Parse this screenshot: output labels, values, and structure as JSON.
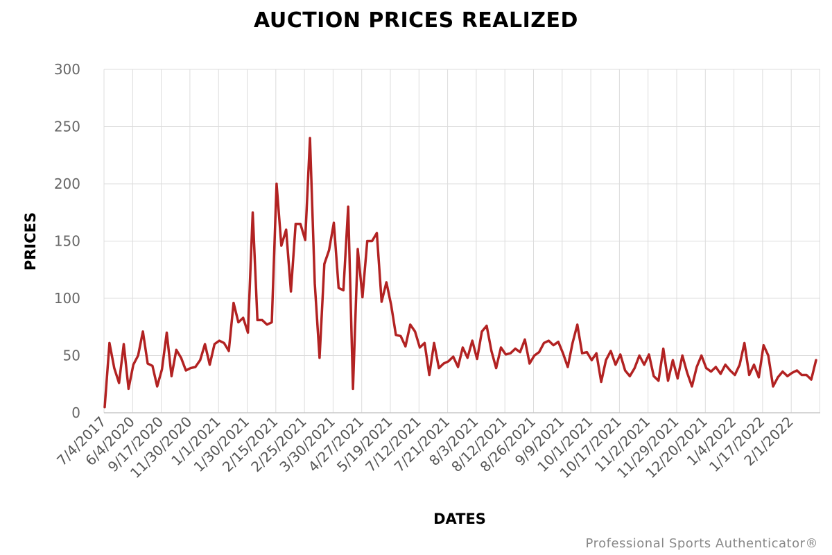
{
  "chart_data": {
    "type": "line",
    "title": "AUCTION PRICES REALIZED",
    "xlabel": "DATES",
    "ylabel": "PRICES",
    "ylim": [
      0,
      300
    ],
    "yticks": [
      0,
      50,
      100,
      150,
      200,
      250,
      300
    ],
    "xtick_labels": [
      "7/4/2017",
      "6/4/2020",
      "9/17/2020",
      "11/30/2020",
      "1/1/2021",
      "1/30/2021",
      "2/15/2021",
      "2/25/2021",
      "3/30/2021",
      "4/27/2021",
      "5/19/2021",
      "7/12/2021",
      "7/21/2021",
      "8/3/2021",
      "8/12/2021",
      "8/26/2021",
      "9/9/2021",
      "10/1/2021",
      "10/17/2021",
      "11/2/2021",
      "11/29/2021",
      "12/20/2021",
      "1/4/2022",
      "1/17/2022",
      "2/1/2022"
    ],
    "grid": true,
    "line_color": "#b22222",
    "series": [
      {
        "values": [
          5,
          61,
          39,
          26,
          60,
          21,
          42,
          50,
          71,
          43,
          41,
          23,
          38,
          70,
          32,
          55,
          48,
          37,
          39,
          40,
          46,
          60,
          42,
          60,
          63,
          61,
          54,
          96,
          79,
          83,
          70,
          175,
          81,
          81,
          77,
          79,
          200,
          146,
          160,
          106,
          165,
          165,
          151,
          240,
          113,
          48,
          130,
          142,
          166,
          109,
          107,
          180,
          21,
          143,
          101,
          150,
          150,
          157,
          97,
          114,
          94,
          68,
          67,
          58,
          77,
          71,
          57,
          61,
          33,
          61,
          39,
          43,
          45,
          49,
          40,
          57,
          48,
          63,
          47,
          71,
          76,
          54,
          39,
          57,
          51,
          52,
          56,
          53,
          64,
          43,
          50,
          53,
          61,
          63,
          59,
          62,
          52,
          40,
          61,
          77,
          52,
          53,
          46,
          52,
          27,
          46,
          54,
          42,
          51,
          37,
          32,
          39,
          50,
          42,
          51,
          32,
          28,
          56,
          28,
          46,
          30,
          50,
          35,
          23,
          40,
          50,
          39,
          36,
          40,
          34,
          42,
          37,
          33,
          42,
          61,
          33,
          42,
          31,
          59,
          50,
          23,
          31,
          36,
          32,
          35,
          37,
          33,
          33,
          29,
          46
        ]
      }
    ]
  },
  "credit": "Professional Sports Authenticator®"
}
